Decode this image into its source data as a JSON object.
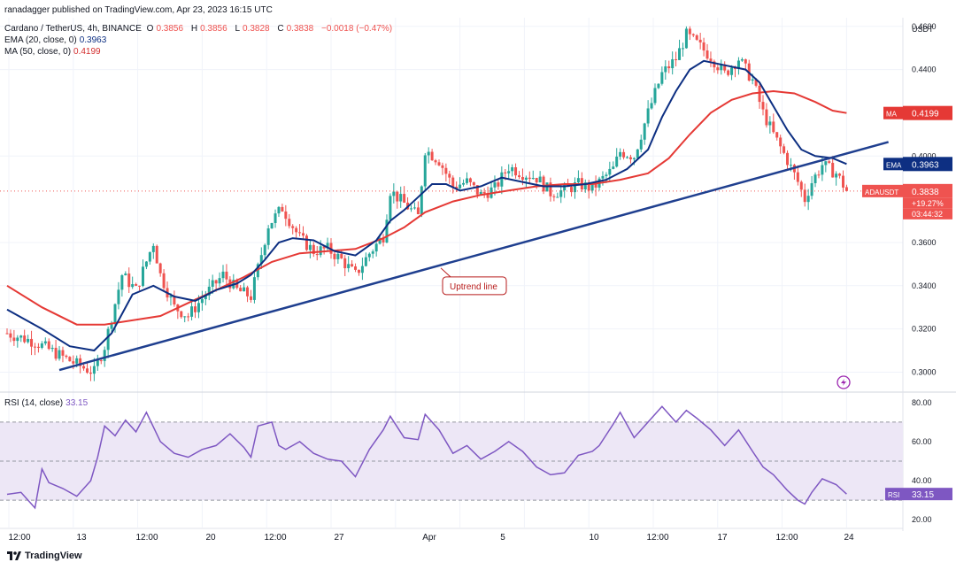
{
  "header": {
    "published": "ranadagger published on TradingView.com, Apr 23, 2023 16:15 UTC",
    "symbol": "Cardano / TetherUS, 4h, BINANCE",
    "ohlc": {
      "o_label": "O",
      "o": "0.3856",
      "h_label": "H",
      "h": "0.3856",
      "l_label": "L",
      "l": "0.3828",
      "c_label": "C",
      "c": "0.3838",
      "change": "−0.0018 (−0.47%)"
    },
    "ema_label": "EMA (20, close, 0)",
    "ema_value": "0.3963",
    "ma_label": "MA (50, close, 0)",
    "ma_value": "0.4199",
    "rsi_label": "RSI (14, close)",
    "rsi_value": "33.15"
  },
  "footer": {
    "brand": "TradingView"
  },
  "colors": {
    "up": "#26a69a",
    "down": "#ef5350",
    "ema": "#0d2f82",
    "ma": "#e53935",
    "trend": "#1f3f8f",
    "rsi": "#7e57c2",
    "rsi_band": "#ede7f6",
    "grid": "#f0f3fa"
  },
  "chart_data": [
    {
      "type": "candlestick",
      "title": "Cardano / TetherUS, 4h, BINANCE",
      "y_unit": "USDT",
      "ylim": [
        0.292,
        0.464
      ],
      "y_ticks": [
        "0.4600",
        "0.4400",
        "0.4000",
        "0.3600",
        "0.3400",
        "0.3200",
        "0.3000"
      ],
      "x_ticks": [
        "12:00",
        "13",
        "12:00",
        "20",
        "12:00",
        "27",
        "Apr",
        "5",
        "12:00",
        "10",
        "12:00",
        "17",
        "12:00",
        "24"
      ],
      "close_path": [
        [
          0,
          0.318
        ],
        [
          8,
          0.314
        ],
        [
          16,
          0.307
        ],
        [
          22,
          0.302
        ],
        [
          25,
          0.3
        ],
        [
          28,
          0.312
        ],
        [
          33,
          0.345
        ],
        [
          37,
          0.338
        ],
        [
          42,
          0.36
        ],
        [
          44,
          0.345
        ],
        [
          48,
          0.33
        ],
        [
          52,
          0.326
        ],
        [
          57,
          0.336
        ],
        [
          62,
          0.345
        ],
        [
          66,
          0.338
        ],
        [
          70,
          0.335
        ],
        [
          72,
          0.348
        ],
        [
          75,
          0.368
        ],
        [
          79,
          0.376
        ],
        [
          84,
          0.362
        ],
        [
          88,
          0.356
        ],
        [
          92,
          0.357
        ],
        [
          96,
          0.352
        ],
        [
          100,
          0.345
        ],
        [
          104,
          0.355
        ],
        [
          108,
          0.363
        ],
        [
          110,
          0.384
        ],
        [
          114,
          0.378
        ],
        [
          118,
          0.372
        ],
        [
          120,
          0.403
        ],
        [
          124,
          0.398
        ],
        [
          128,
          0.386
        ],
        [
          132,
          0.388
        ],
        [
          136,
          0.382
        ],
        [
          140,
          0.385
        ],
        [
          144,
          0.395
        ],
        [
          148,
          0.392
        ],
        [
          152,
          0.39
        ],
        [
          156,
          0.383
        ],
        [
          160,
          0.384
        ],
        [
          164,
          0.387
        ],
        [
          168,
          0.385
        ],
        [
          170,
          0.388
        ],
        [
          174,
          0.394
        ],
        [
          176,
          0.402
        ],
        [
          180,
          0.4
        ],
        [
          184,
          0.42
        ],
        [
          188,
          0.438
        ],
        [
          192,
          0.445
        ],
        [
          195,
          0.456
        ],
        [
          198,
          0.452
        ],
        [
          202,
          0.446
        ],
        [
          206,
          0.438
        ],
        [
          210,
          0.445
        ],
        [
          214,
          0.435
        ],
        [
          217,
          0.42
        ],
        [
          220,
          0.41
        ],
        [
          224,
          0.398
        ],
        [
          227,
          0.388
        ],
        [
          229,
          0.38
        ],
        [
          231,
          0.388
        ],
        [
          234,
          0.396
        ],
        [
          238,
          0.392
        ],
        [
          241,
          0.384
        ]
      ],
      "ema_20": {
        "name": "EMA",
        "value": 0.3963,
        "path": [
          [
            0,
            0.329
          ],
          [
            10,
            0.32
          ],
          [
            18,
            0.312
          ],
          [
            25,
            0.31
          ],
          [
            30,
            0.318
          ],
          [
            36,
            0.336
          ],
          [
            42,
            0.34
          ],
          [
            48,
            0.335
          ],
          [
            54,
            0.333
          ],
          [
            60,
            0.338
          ],
          [
            66,
            0.341
          ],
          [
            70,
            0.345
          ],
          [
            74,
            0.352
          ],
          [
            78,
            0.36
          ],
          [
            82,
            0.362
          ],
          [
            88,
            0.361
          ],
          [
            94,
            0.356
          ],
          [
            100,
            0.354
          ],
          [
            106,
            0.361
          ],
          [
            110,
            0.37
          ],
          [
            114,
            0.375
          ],
          [
            118,
            0.381
          ],
          [
            122,
            0.387
          ],
          [
            126,
            0.387
          ],
          [
            130,
            0.384
          ],
          [
            136,
            0.386
          ],
          [
            142,
            0.39
          ],
          [
            148,
            0.388
          ],
          [
            154,
            0.386
          ],
          [
            160,
            0.386
          ],
          [
            166,
            0.387
          ],
          [
            172,
            0.389
          ],
          [
            178,
            0.394
          ],
          [
            184,
            0.403
          ],
          [
            188,
            0.418
          ],
          [
            192,
            0.43
          ],
          [
            196,
            0.44
          ],
          [
            200,
            0.444
          ],
          [
            206,
            0.442
          ],
          [
            212,
            0.44
          ],
          [
            216,
            0.434
          ],
          [
            220,
            0.423
          ],
          [
            224,
            0.412
          ],
          [
            228,
            0.403
          ],
          [
            232,
            0.4
          ],
          [
            237,
            0.399
          ],
          [
            241,
            0.3963
          ]
        ]
      },
      "ma_50": {
        "name": "MA",
        "value": 0.4199,
        "path": [
          [
            0,
            0.34
          ],
          [
            10,
            0.33
          ],
          [
            20,
            0.322
          ],
          [
            28,
            0.322
          ],
          [
            36,
            0.324
          ],
          [
            44,
            0.326
          ],
          [
            52,
            0.332
          ],
          [
            60,
            0.338
          ],
          [
            68,
            0.344
          ],
          [
            76,
            0.351
          ],
          [
            84,
            0.355
          ],
          [
            92,
            0.356
          ],
          [
            100,
            0.357
          ],
          [
            108,
            0.362
          ],
          [
            114,
            0.367
          ],
          [
            120,
            0.374
          ],
          [
            128,
            0.379
          ],
          [
            136,
            0.382
          ],
          [
            144,
            0.384
          ],
          [
            152,
            0.386
          ],
          [
            160,
            0.387
          ],
          [
            168,
            0.387
          ],
          [
            176,
            0.389
          ],
          [
            184,
            0.392
          ],
          [
            190,
            0.399
          ],
          [
            196,
            0.41
          ],
          [
            202,
            0.42
          ],
          [
            208,
            0.426
          ],
          [
            214,
            0.429
          ],
          [
            220,
            0.43
          ],
          [
            226,
            0.429
          ],
          [
            232,
            0.425
          ],
          [
            237,
            0.421
          ],
          [
            241,
            0.4199
          ]
        ]
      },
      "annotations": [
        {
          "text": "Uptrend line",
          "from": [
            15,
            0.301
          ],
          "to": [
            253,
            0.4065
          ],
          "arrow_to": [
            124,
            0.349
          ]
        }
      ],
      "price_labels": [
        {
          "name": "MA",
          "value": "0.4199"
        },
        {
          "name": "EMA",
          "value": "0.3963"
        },
        {
          "name": "ADAUSDT",
          "value": "0.3838",
          "extra": [
            "+19.27%",
            "03:44:32"
          ]
        }
      ]
    },
    {
      "type": "line",
      "title": "RSI (14, close)",
      "ylim": [
        16,
        84
      ],
      "y_ticks": [
        "80.00",
        "60.00",
        "40.00",
        "20.00"
      ],
      "bands": [
        30,
        50,
        70
      ],
      "value": 33.15,
      "series": [
        {
          "name": "RSI",
          "points": [
            [
              0,
              33
            ],
            [
              4,
              34
            ],
            [
              8,
              26
            ],
            [
              10,
              46
            ],
            [
              12,
              39
            ],
            [
              16,
              36
            ],
            [
              20,
              32
            ],
            [
              24,
              40
            ],
            [
              26,
              52
            ],
            [
              28,
              68
            ],
            [
              31,
              63
            ],
            [
              34,
              71
            ],
            [
              37,
              65
            ],
            [
              40,
              75
            ],
            [
              44,
              60
            ],
            [
              48,
              54
            ],
            [
              52,
              52
            ],
            [
              56,
              56
            ],
            [
              60,
              58
            ],
            [
              64,
              64
            ],
            [
              68,
              57
            ],
            [
              70,
              52
            ],
            [
              72,
              68
            ],
            [
              76,
              70
            ],
            [
              78,
              58
            ],
            [
              80,
              56
            ],
            [
              84,
              60
            ],
            [
              88,
              54
            ],
            [
              92,
              51
            ],
            [
              96,
              50
            ],
            [
              100,
              42
            ],
            [
              104,
              56
            ],
            [
              108,
              66
            ],
            [
              110,
              73
            ],
            [
              114,
              62
            ],
            [
              118,
              61
            ],
            [
              120,
              74
            ],
            [
              124,
              66
            ],
            [
              128,
              54
            ],
            [
              132,
              58
            ],
            [
              136,
              51
            ],
            [
              140,
              55
            ],
            [
              144,
              60
            ],
            [
              148,
              55
            ],
            [
              152,
              47
            ],
            [
              156,
              43
            ],
            [
              160,
              44
            ],
            [
              164,
              53
            ],
            [
              168,
              55
            ],
            [
              170,
              58
            ],
            [
              174,
              69
            ],
            [
              176,
              75
            ],
            [
              180,
              62
            ],
            [
              184,
              70
            ],
            [
              188,
              78
            ],
            [
              192,
              70
            ],
            [
              195,
              76
            ],
            [
              198,
              72
            ],
            [
              202,
              66
            ],
            [
              206,
              58
            ],
            [
              210,
              66
            ],
            [
              214,
              55
            ],
            [
              217,
              47
            ],
            [
              220,
              43
            ],
            [
              224,
              35
            ],
            [
              227,
              30
            ],
            [
              229,
              28
            ],
            [
              231,
              34
            ],
            [
              234,
              41
            ],
            [
              238,
              38
            ],
            [
              241,
              33.15
            ]
          ]
        }
      ]
    }
  ]
}
